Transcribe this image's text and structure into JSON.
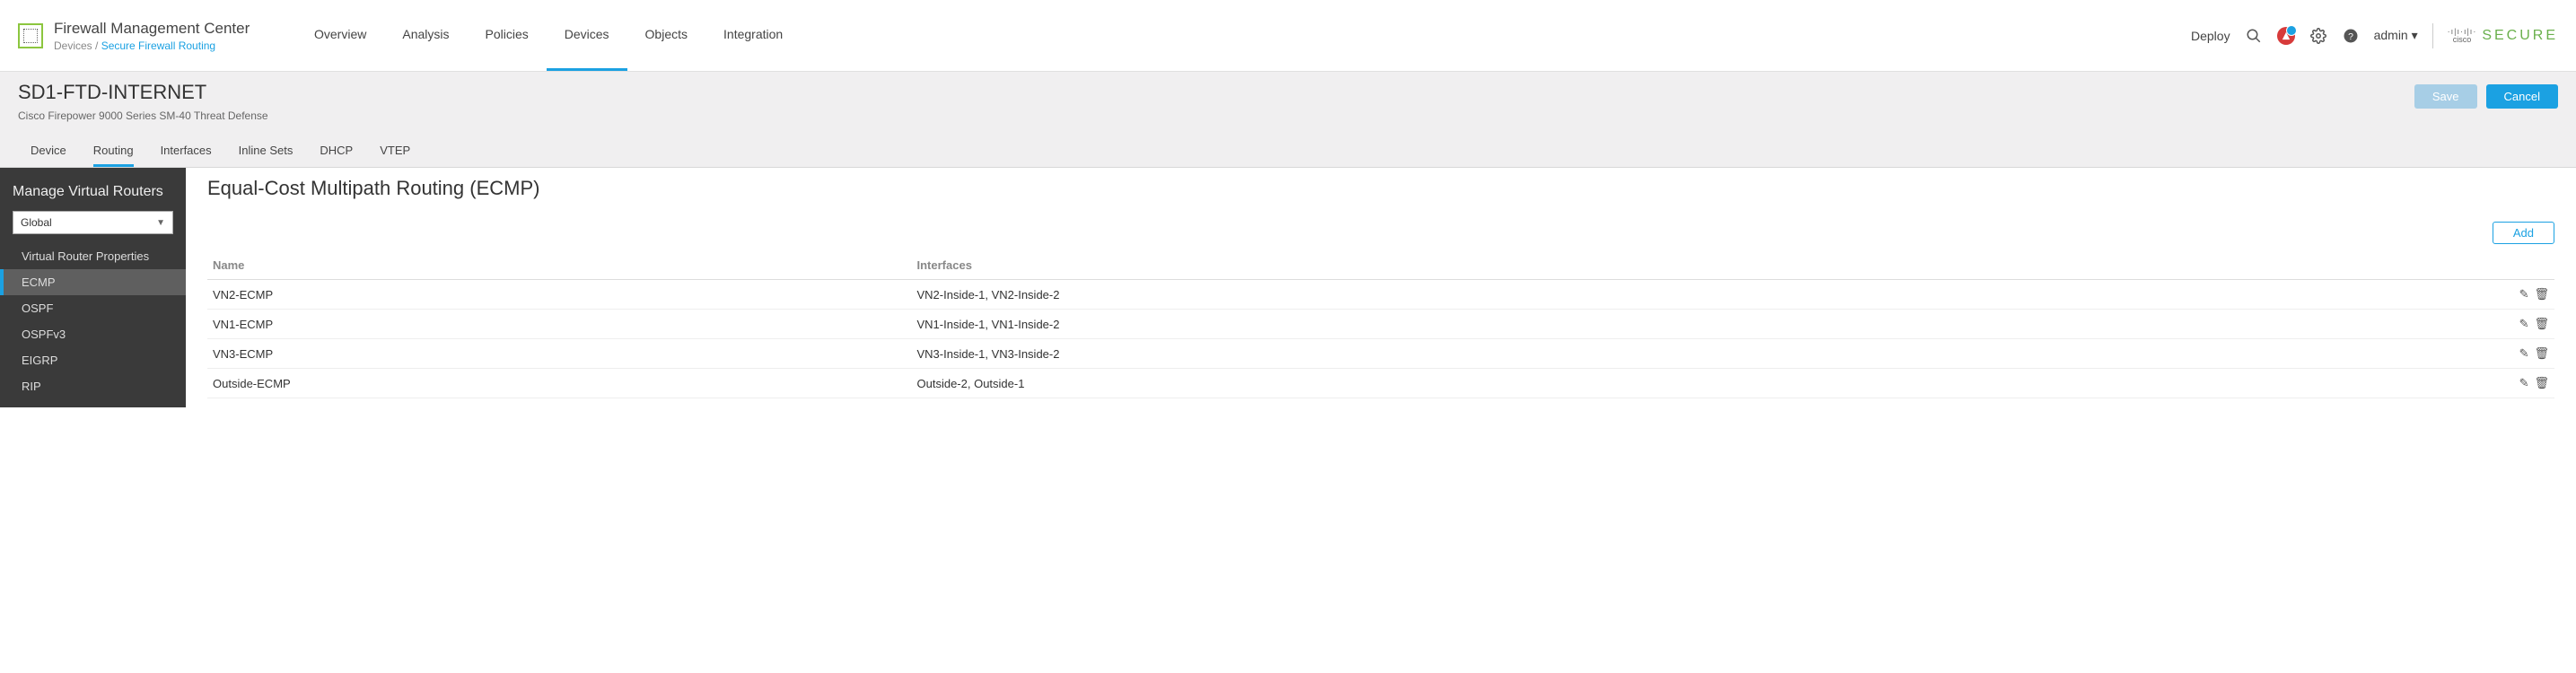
{
  "brand": {
    "title": "Firewall Management Center",
    "breadcrumb_prefix": "Devices / ",
    "breadcrumb_link": "Secure Firewall Routing"
  },
  "main_nav": {
    "items": [
      "Overview",
      "Analysis",
      "Policies",
      "Devices",
      "Objects",
      "Integration"
    ],
    "active": "Devices"
  },
  "header_actions": {
    "deploy": "Deploy",
    "admin": "admin ▾",
    "secure_brand": "SECURE",
    "cisco_label": "cisco"
  },
  "device": {
    "name": "SD1-FTD-INTERNET",
    "description": "Cisco Firepower 9000 Series SM-40 Threat Defense",
    "buttons": {
      "save": "Save",
      "cancel": "Cancel"
    }
  },
  "sub_tabs": {
    "items": [
      "Device",
      "Routing",
      "Interfaces",
      "Inline Sets",
      "DHCP",
      "VTEP"
    ],
    "active": "Routing"
  },
  "sidebar": {
    "title": "Manage Virtual Routers",
    "select_value": "Global",
    "items": [
      "Virtual Router Properties",
      "ECMP",
      "OSPF",
      "OSPFv3",
      "EIGRP",
      "RIP"
    ],
    "active": "ECMP"
  },
  "content": {
    "heading": "Equal-Cost Multipath Routing (ECMP)",
    "add_label": "Add",
    "columns": {
      "name": "Name",
      "interfaces": "Interfaces"
    },
    "rows": [
      {
        "name": "VN2-ECMP",
        "interfaces": "VN2-Inside-1, VN2-Inside-2"
      },
      {
        "name": "VN1-ECMP",
        "interfaces": "VN1-Inside-1, VN1-Inside-2"
      },
      {
        "name": "VN3-ECMP",
        "interfaces": "VN3-Inside-1, VN3-Inside-2"
      },
      {
        "name": "Outside-ECMP",
        "interfaces": "Outside-2, Outside-1"
      }
    ]
  },
  "colors": {
    "accent": "#1ba1e2",
    "sidebar_bg": "#3a3a3a"
  }
}
